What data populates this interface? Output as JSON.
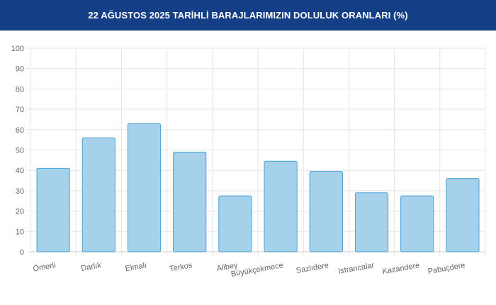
{
  "header": {
    "title": "22 AĞUSTOS 2025 TARİHLİ BARAJLARIMIZIN DOLULUK ORANLARI (%)",
    "background": "#143f86"
  },
  "chart_data": {
    "type": "bar",
    "title": "22 AĞUSTOS 2025 TARİHLİ BARAJLARIMIZIN DOLULUK ORANLARI (%)",
    "xlabel": "",
    "ylabel": "",
    "categories": [
      "Ömerli",
      "Darlık",
      "Elmalı",
      "Terkos",
      "Alibey",
      "Büyükçekmece",
      "Sazlıdere",
      "Istrancalar",
      "Kazandere",
      "Pabuçdere"
    ],
    "values": [
      41,
      56,
      63,
      49,
      27.5,
      44.5,
      39.5,
      29,
      27.5,
      36
    ],
    "ylim": [
      0,
      100
    ],
    "yticks": [
      0,
      10,
      20,
      30,
      40,
      50,
      60,
      70,
      80,
      90,
      100
    ],
    "grid": true,
    "legend": "none",
    "bar_fill": "#a6d1eb",
    "bar_stroke": "#4fa0cf",
    "grid_color": "#e5e5e5",
    "tick_color": "#666666"
  }
}
